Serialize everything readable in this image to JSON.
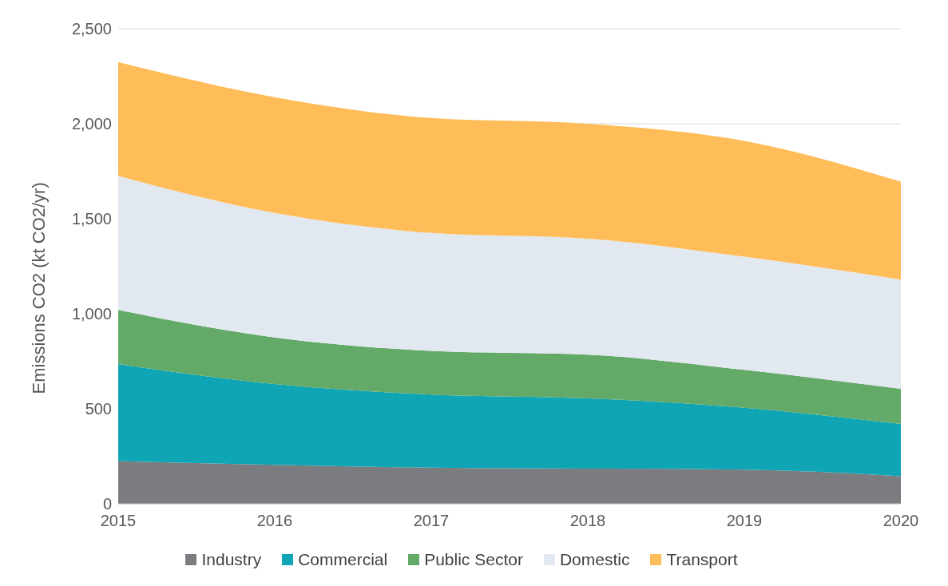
{
  "chart_data": {
    "type": "area",
    "stacked": true,
    "ylabel": "Emissions CO2 (kt CO2/yr)",
    "x": [
      2015,
      2016,
      2017,
      2018,
      2019,
      2020
    ],
    "xlim": [
      2015,
      2020
    ],
    "xticks": [
      2015,
      2016,
      2017,
      2018,
      2019,
      2020
    ],
    "ylim": [
      0,
      2500
    ],
    "yticks": [
      0,
      500,
      {
        "value": 1000,
        "label": "1,000"
      },
      {
        "value": 1500,
        "label": "1,500"
      },
      {
        "value": 2000,
        "label": "2,000"
      },
      {
        "value": 2500,
        "label": "2,500"
      }
    ],
    "grid": "y",
    "legend": "bottom",
    "series": [
      {
        "name": "Industry",
        "color": "#7b7c80",
        "values": [
          225,
          205,
          190,
          185,
          180,
          145
        ]
      },
      {
        "name": "Commercial",
        "color": "#0fa5b4",
        "values": [
          510,
          425,
          385,
          370,
          325,
          275
        ]
      },
      {
        "name": "Public Sector",
        "color": "#63a968",
        "values": [
          285,
          245,
          230,
          230,
          200,
          185
        ]
      },
      {
        "name": "Domestic",
        "color": "#e2e8f0",
        "values": [
          705,
          655,
          620,
          610,
          595,
          575
        ]
      },
      {
        "name": "Transport",
        "color": "#ffbd59",
        "values": [
          600,
          610,
          605,
          605,
          610,
          515
        ]
      }
    ]
  }
}
